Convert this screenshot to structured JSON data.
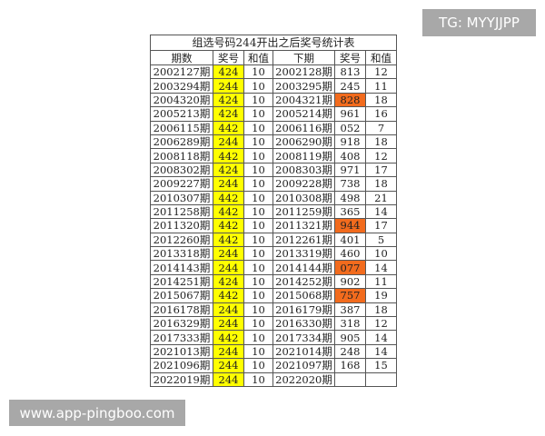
{
  "title": "组选号码244开出之后奖号统计表",
  "headers": [
    "期数",
    "奖号",
    "和值",
    "下期",
    "奖号",
    "和值"
  ],
  "highlight_colors": {
    "yellow": "#ffff00",
    "orange": "#f26b1d"
  },
  "rows": [
    [
      "2002127期",
      "424",
      "10",
      "2002128期",
      "813",
      "12",
      false
    ],
    [
      "2003294期",
      "244",
      "10",
      "2003295期",
      "245",
      "11",
      false
    ],
    [
      "2004320期",
      "424",
      "10",
      "2004321期",
      "828",
      "18",
      true
    ],
    [
      "2005213期",
      "424",
      "10",
      "2005214期",
      "961",
      "16",
      false
    ],
    [
      "2006115期",
      "442",
      "10",
      "2006116期",
      "052",
      "7",
      false
    ],
    [
      "2006289期",
      "244",
      "10",
      "2006290期",
      "918",
      "18",
      false
    ],
    [
      "2008118期",
      "442",
      "10",
      "2008119期",
      "408",
      "12",
      false
    ],
    [
      "2008302期",
      "424",
      "10",
      "2008303期",
      "971",
      "17",
      false
    ],
    [
      "2009227期",
      "244",
      "10",
      "2009228期",
      "738",
      "18",
      false
    ],
    [
      "2010307期",
      "442",
      "10",
      "2010308期",
      "498",
      "21",
      false
    ],
    [
      "2011258期",
      "442",
      "10",
      "2011259期",
      "365",
      "14",
      false
    ],
    [
      "2011320期",
      "442",
      "10",
      "2011321期",
      "944",
      "17",
      true
    ],
    [
      "2012260期",
      "442",
      "10",
      "2012261期",
      "401",
      "5",
      false
    ],
    [
      "2013318期",
      "244",
      "10",
      "2013319期",
      "460",
      "10",
      false
    ],
    [
      "2014143期",
      "244",
      "10",
      "2014144期",
      "077",
      "14",
      true
    ],
    [
      "2014251期",
      "424",
      "10",
      "2014252期",
      "902",
      "11",
      false
    ],
    [
      "2015067期",
      "442",
      "10",
      "2015068期",
      "757",
      "19",
      true
    ],
    [
      "2016178期",
      "244",
      "10",
      "2016179期",
      "387",
      "18",
      false
    ],
    [
      "2016329期",
      "244",
      "10",
      "2016330期",
      "318",
      "12",
      false
    ],
    [
      "2017333期",
      "442",
      "10",
      "2017334期",
      "905",
      "14",
      false
    ],
    [
      "2021013期",
      "244",
      "10",
      "2021014期",
      "248",
      "14",
      false
    ],
    [
      "2021096期",
      "244",
      "10",
      "2021097期",
      "168",
      "15",
      false
    ],
    [
      "2022019期",
      "244",
      "10",
      "2022020期",
      "",
      "",
      false
    ]
  ],
  "watermarks": {
    "top": "TG: MYYJJPP",
    "bottom": "www.app-pingboo.com"
  }
}
